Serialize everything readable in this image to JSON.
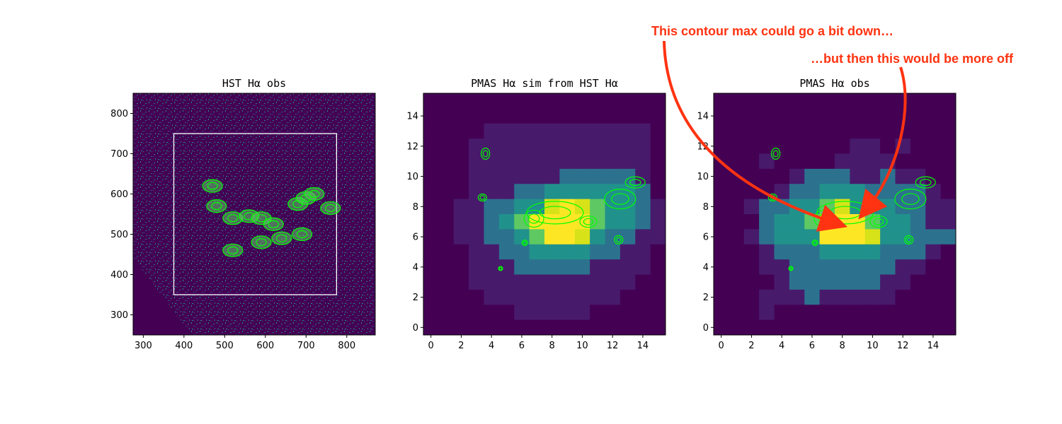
{
  "colors": {
    "bg": "#440154",
    "low": "#481a6c",
    "mid": "#2c728e",
    "teal": "#21918c",
    "green": "#5ec962",
    "yellow": "#d8e219",
    "bright": "#fde725",
    "contour": "#00ff00",
    "annotation": "#ff3311",
    "box": "#ffffff"
  },
  "annotations": {
    "top": "This contour max could go a bit down…",
    "right": "…but then this would be more off"
  },
  "chart_data": [
    {
      "type": "heatmap",
      "title": "HST Hα obs",
      "xlim": [
        275,
        870
      ],
      "ylim": [
        250,
        850
      ],
      "xticks": [
        "300",
        "400",
        "500",
        "600",
        "700",
        "800"
      ],
      "yticks": [
        "300",
        "400",
        "500",
        "600",
        "700",
        "800"
      ],
      "box": {
        "x0": 375,
        "x1": 775,
        "y0": 350,
        "y1": 750
      },
      "contour_centers": [
        [
          470,
          620
        ],
        [
          480,
          570
        ],
        [
          520,
          540
        ],
        [
          560,
          545
        ],
        [
          590,
          540
        ],
        [
          620,
          525
        ],
        [
          680,
          575
        ],
        [
          700,
          590
        ],
        [
          720,
          600
        ],
        [
          760,
          565
        ],
        [
          590,
          480
        ],
        [
          520,
          460
        ],
        [
          640,
          490
        ],
        [
          690,
          500
        ]
      ]
    },
    {
      "type": "heatmap",
      "title": "PMAS Hα sim from HST Hα",
      "xlim": [
        -0.5,
        15.5
      ],
      "ylim": [
        -0.5,
        15.5
      ],
      "xticks": [
        "0",
        "2",
        "4",
        "6",
        "8",
        "10",
        "12",
        "14"
      ],
      "yticks": [
        "0",
        "2",
        "4",
        "6",
        "8",
        "10",
        "12",
        "14"
      ],
      "grid": [
        [
          0,
          0,
          0,
          0,
          0,
          0,
          0,
          0,
          0,
          0,
          0,
          0,
          0,
          0,
          0,
          0
        ],
        [
          0,
          0,
          0,
          0,
          0,
          0,
          0,
          0,
          0,
          0,
          0,
          0,
          0,
          0,
          0,
          0
        ],
        [
          0,
          0,
          0,
          0,
          1,
          1,
          1,
          1,
          1,
          1,
          1,
          1,
          1,
          1,
          1,
          0
        ],
        [
          0,
          0,
          0,
          1,
          1,
          1,
          1,
          1,
          1,
          1,
          1,
          1,
          1,
          1,
          1,
          0
        ],
        [
          0,
          0,
          0,
          1,
          1,
          1,
          1,
          1,
          1,
          1,
          1,
          1,
          1,
          1,
          1,
          0
        ],
        [
          0,
          0,
          0,
          1,
          1,
          1,
          1,
          1,
          1,
          2,
          2,
          2,
          2,
          2,
          1,
          0
        ],
        [
          0,
          0,
          0,
          1,
          1,
          1,
          2,
          2,
          3,
          3,
          3,
          3,
          3,
          3,
          2,
          0
        ],
        [
          0,
          0,
          1,
          1,
          2,
          2,
          3,
          3,
          5,
          6,
          5,
          4,
          3,
          3,
          2,
          1
        ],
        [
          0,
          0,
          1,
          1,
          2,
          3,
          4,
          6,
          6,
          6,
          6,
          4,
          3,
          3,
          2,
          1
        ],
        [
          0,
          0,
          1,
          1,
          2,
          2,
          3,
          4,
          6,
          6,
          5,
          3,
          2,
          2,
          1,
          1
        ],
        [
          0,
          0,
          0,
          1,
          1,
          2,
          2,
          3,
          3,
          3,
          3,
          2,
          2,
          1,
          1,
          0
        ],
        [
          0,
          0,
          0,
          1,
          1,
          1,
          2,
          2,
          2,
          2,
          2,
          1,
          1,
          1,
          1,
          0
        ],
        [
          0,
          0,
          0,
          1,
          1,
          1,
          1,
          1,
          1,
          1,
          1,
          1,
          1,
          1,
          0,
          0
        ],
        [
          0,
          0,
          0,
          0,
          1,
          1,
          1,
          1,
          1,
          1,
          1,
          1,
          1,
          0,
          0,
          0
        ],
        [
          0,
          0,
          0,
          0,
          0,
          0,
          1,
          1,
          1,
          1,
          1,
          0,
          0,
          0,
          0,
          0
        ],
        [
          0,
          0,
          0,
          0,
          0,
          0,
          0,
          0,
          0,
          0,
          0,
          0,
          0,
          0,
          0,
          0
        ]
      ]
    },
    {
      "type": "heatmap",
      "title": "PMAS Hα obs",
      "xlim": [
        -0.5,
        15.5
      ],
      "ylim": [
        -0.5,
        15.5
      ],
      "xticks": [
        "0",
        "2",
        "4",
        "6",
        "8",
        "10",
        "12",
        "14"
      ],
      "yticks": [
        "0",
        "2",
        "4",
        "6",
        "8",
        "10",
        "12",
        "14"
      ],
      "grid": [
        [
          0,
          0,
          0,
          0,
          0,
          0,
          0,
          0,
          0,
          0,
          0,
          0,
          0,
          0,
          0,
          0
        ],
        [
          0,
          0,
          0,
          0,
          0,
          0,
          0,
          0,
          0,
          0,
          0,
          0,
          0,
          0,
          0,
          0
        ],
        [
          0,
          0,
          0,
          0,
          0,
          0,
          0,
          0,
          0,
          0,
          0,
          0,
          0,
          0,
          0,
          0
        ],
        [
          0,
          0,
          0,
          0,
          0,
          0,
          0,
          0,
          0,
          1,
          1,
          0,
          1,
          0,
          0,
          0
        ],
        [
          0,
          0,
          0,
          1,
          0,
          0,
          0,
          0,
          1,
          1,
          1,
          1,
          0,
          0,
          0,
          0
        ],
        [
          0,
          0,
          0,
          0,
          0,
          1,
          2,
          2,
          2,
          1,
          1,
          2,
          1,
          1,
          0,
          0
        ],
        [
          0,
          0,
          0,
          0,
          1,
          2,
          2,
          3,
          3,
          3,
          2,
          2,
          2,
          2,
          1,
          0
        ],
        [
          0,
          0,
          1,
          2,
          2,
          3,
          3,
          4,
          5,
          3,
          3,
          3,
          2,
          2,
          1,
          1
        ],
        [
          0,
          0,
          0,
          2,
          3,
          3,
          4,
          5,
          6,
          6,
          4,
          3,
          3,
          2,
          1,
          1
        ],
        [
          0,
          0,
          1,
          2,
          3,
          3,
          3,
          6,
          6,
          6,
          5,
          3,
          3,
          2,
          2,
          2
        ],
        [
          0,
          0,
          0,
          1,
          2,
          2,
          2,
          3,
          3,
          3,
          3,
          2,
          2,
          2,
          1,
          0
        ],
        [
          0,
          0,
          0,
          1,
          1,
          2,
          2,
          2,
          2,
          2,
          2,
          2,
          1,
          1,
          0,
          0
        ],
        [
          0,
          0,
          0,
          0,
          1,
          2,
          2,
          2,
          2,
          2,
          2,
          1,
          1,
          0,
          0,
          0
        ],
        [
          0,
          0,
          0,
          1,
          1,
          1,
          2,
          1,
          1,
          1,
          1,
          1,
          0,
          0,
          0,
          0
        ],
        [
          0,
          0,
          0,
          1,
          0,
          0,
          0,
          0,
          0,
          0,
          0,
          0,
          0,
          0,
          0,
          0
        ],
        [
          0,
          0,
          0,
          0,
          0,
          0,
          0,
          0,
          0,
          0,
          0,
          0,
          0,
          0,
          0,
          0
        ]
      ]
    }
  ]
}
